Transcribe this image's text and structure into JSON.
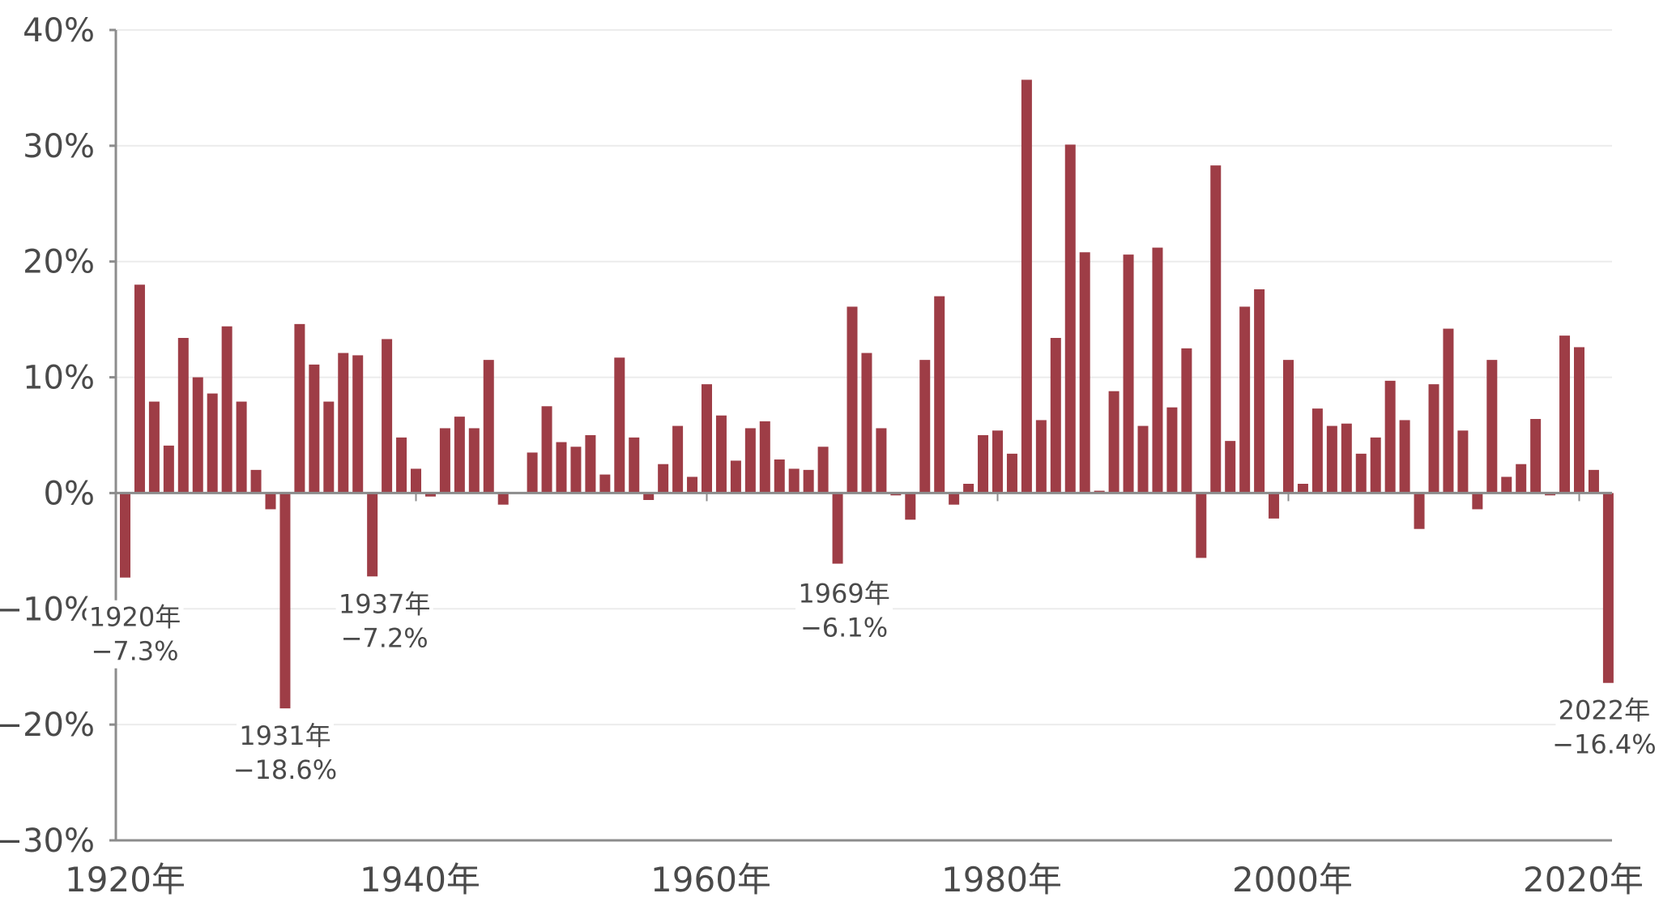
{
  "colors": {
    "bar": "#9e3d46",
    "axis": "#8c8c8c",
    "grid": "#ececec",
    "text": "#4a4a4a"
  },
  "chart_data": {
    "type": "bar",
    "title": "",
    "xlabel": "",
    "ylabel": "",
    "ylim": [
      -30,
      40
    ],
    "y_ticks": [
      40,
      30,
      20,
      10,
      0,
      -10,
      -20,
      -30
    ],
    "y_tick_labels": [
      "40%",
      "30%",
      "20%",
      "10%",
      "0%",
      "−10%",
      "−20%",
      "−30%"
    ],
    "x_ticks": [
      1920,
      1940,
      1960,
      1980,
      2000,
      2020
    ],
    "x_tick_labels": [
      "1920年",
      "1940年",
      "1960年",
      "1980年",
      "2000年",
      "2020年"
    ],
    "grid": true,
    "years": [
      1920,
      1921,
      1922,
      1923,
      1924,
      1925,
      1926,
      1927,
      1928,
      1929,
      1930,
      1931,
      1932,
      1933,
      1934,
      1935,
      1936,
      1937,
      1938,
      1939,
      1940,
      1941,
      1942,
      1943,
      1944,
      1945,
      1946,
      1947,
      1948,
      1949,
      1950,
      1951,
      1952,
      1953,
      1954,
      1955,
      1956,
      1957,
      1958,
      1959,
      1960,
      1961,
      1962,
      1963,
      1964,
      1965,
      1966,
      1967,
      1968,
      1969,
      1970,
      1971,
      1972,
      1973,
      1974,
      1975,
      1976,
      1977,
      1978,
      1979,
      1980,
      1981,
      1982,
      1983,
      1984,
      1985,
      1986,
      1987,
      1988,
      1989,
      1990,
      1991,
      1992,
      1993,
      1994,
      1995,
      1996,
      1997,
      1998,
      1999,
      2000,
      2001,
      2002,
      2003,
      2004,
      2005,
      2006,
      2007,
      2008,
      2009,
      2010,
      2011,
      2012,
      2013,
      2014,
      2015,
      2016,
      2017,
      2018,
      2019,
      2020,
      2021,
      2022
    ],
    "values": [
      -7.3,
      18.0,
      7.9,
      4.1,
      13.4,
      10.0,
      8.6,
      14.4,
      7.9,
      2.0,
      -1.4,
      -18.6,
      14.6,
      11.1,
      7.9,
      12.1,
      11.9,
      -7.2,
      13.3,
      4.8,
      2.1,
      -0.3,
      5.6,
      6.6,
      5.6,
      11.5,
      -1.0,
      0.0,
      3.5,
      7.5,
      4.4,
      4.0,
      5.0,
      1.6,
      11.7,
      4.8,
      -0.6,
      2.5,
      5.8,
      1.4,
      9.4,
      6.7,
      2.8,
      5.6,
      6.2,
      2.9,
      2.1,
      2.0,
      4.0,
      -6.1,
      16.1,
      12.1,
      5.6,
      -0.2,
      -2.3,
      11.5,
      17.0,
      -1.0,
      0.8,
      5.0,
      5.4,
      3.4,
      35.7,
      6.3,
      13.4,
      30.1,
      20.8,
      0.2,
      8.8,
      20.6,
      5.8,
      21.2,
      7.4,
      12.5,
      -5.6,
      28.3,
      4.5,
      16.1,
      17.6,
      -2.2,
      11.5,
      0.8,
      7.3,
      5.8,
      6.0,
      3.4,
      4.8,
      9.7,
      6.3,
      -3.1,
      9.4,
      14.2,
      5.4,
      -1.4,
      11.5,
      1.4,
      2.5,
      6.4,
      -0.2,
      13.6,
      12.6,
      2.0,
      -16.4
    ],
    "annotations": [
      {
        "year": 1920,
        "label_year": "1920年",
        "label_value": "−7.3%"
      },
      {
        "year": 1931,
        "label_year": "1931年",
        "label_value": "−18.6%"
      },
      {
        "year": 1937,
        "label_year": "1937年",
        "label_value": "−7.2%"
      },
      {
        "year": 1969,
        "label_year": "1969年",
        "label_value": "−6.1%"
      },
      {
        "year": 2022,
        "label_year": "2022年",
        "label_value": "−16.4%"
      }
    ]
  }
}
